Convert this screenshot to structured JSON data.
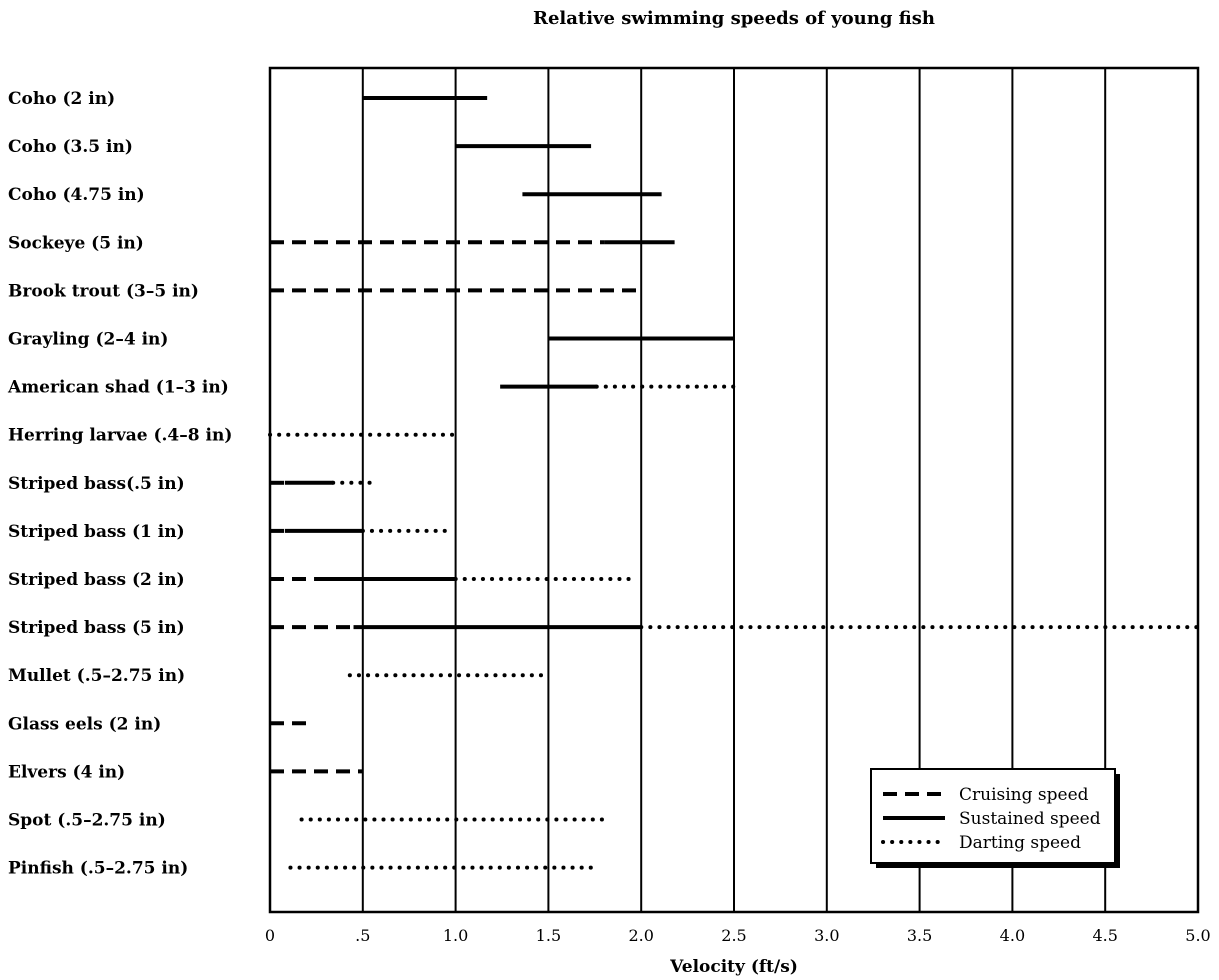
{
  "chart_data": {
    "type": "range-bar",
    "title": "Relative swimming speeds of young fish",
    "xlabel": "Velocity (ft/s)",
    "xlim": [
      0,
      5.0
    ],
    "x_ticks": [
      0,
      0.5,
      1.0,
      1.5,
      2.0,
      2.5,
      3.0,
      3.5,
      4.0,
      4.5,
      5.0
    ],
    "x_tick_labels": [
      "0",
      ".5",
      "1.0",
      "1.5",
      "2.0",
      "2.5",
      "3.0",
      "3.5",
      "4.0",
      "4.5",
      "5.0"
    ],
    "grid": "vertical",
    "legend": {
      "placement": "bottom-right",
      "entries": [
        {
          "key": "cruising",
          "label": "Cruising speed",
          "style": "dashed"
        },
        {
          "key": "sustained",
          "label": "Sustained speed",
          "style": "solid"
        },
        {
          "key": "darting",
          "label": "Darting speed",
          "style": "dotted"
        }
      ]
    },
    "categories": [
      {
        "label": "Coho (2 in)",
        "segments": [
          {
            "type": "sustained",
            "from": 0.5,
            "to": 1.17
          }
        ]
      },
      {
        "label": "Coho (3.5 in)",
        "segments": [
          {
            "type": "sustained",
            "from": 1.0,
            "to": 1.73
          }
        ]
      },
      {
        "label": "Coho (4.75 in)",
        "segments": [
          {
            "type": "sustained",
            "from": 1.36,
            "to": 2.11
          }
        ]
      },
      {
        "label": "Sockeye (5 in)",
        "segments": [
          {
            "type": "cruising",
            "from": 0,
            "to": 1.8
          },
          {
            "type": "sustained",
            "from": 1.8,
            "to": 2.18
          }
        ]
      },
      {
        "label": "Brook trout (3–5 in)",
        "segments": [
          {
            "type": "cruising",
            "from": 0,
            "to": 2.0
          }
        ]
      },
      {
        "label": "Grayling (2–4 in)",
        "segments": [
          {
            "type": "sustained",
            "from": 1.5,
            "to": 2.5
          }
        ]
      },
      {
        "label": "American shad (1–3 in)",
        "segments": [
          {
            "type": "sustained",
            "from": 1.24,
            "to": 1.76
          },
          {
            "type": "darting",
            "from": 1.76,
            "to": 2.5
          }
        ]
      },
      {
        "label": "Herring larvae (.4–8 in)",
        "segments": [
          {
            "type": "darting",
            "from": 0,
            "to": 1.0
          }
        ]
      },
      {
        "label": "Striped bass(.5 in)",
        "segments": [
          {
            "type": "cruising",
            "from": 0,
            "to": 0.08
          },
          {
            "type": "sustained",
            "from": 0.08,
            "to": 0.34
          },
          {
            "type": "darting",
            "from": 0.34,
            "to": 0.58
          }
        ]
      },
      {
        "label": "Striped bass (1 in)",
        "segments": [
          {
            "type": "cruising",
            "from": 0,
            "to": 0.08
          },
          {
            "type": "sustained",
            "from": 0.08,
            "to": 0.5
          },
          {
            "type": "darting",
            "from": 0.5,
            "to": 0.95
          }
        ]
      },
      {
        "label": "Striped bass (2 in)",
        "segments": [
          {
            "type": "cruising",
            "from": 0,
            "to": 0.24
          },
          {
            "type": "sustained",
            "from": 0.24,
            "to": 1.0
          },
          {
            "type": "darting",
            "from": 1.0,
            "to": 1.98
          }
        ]
      },
      {
        "label": "Striped bass (5 in)",
        "segments": [
          {
            "type": "cruising",
            "from": 0,
            "to": 0.45
          },
          {
            "type": "sustained",
            "from": 0.45,
            "to": 2.0
          },
          {
            "type": "darting",
            "from": 2.0,
            "to": 5.0
          }
        ]
      },
      {
        "label": "Mullet (.5–2.75 in)",
        "segments": [
          {
            "type": "darting",
            "from": 0.43,
            "to": 1.47
          }
        ]
      },
      {
        "label": "Glass eels (2 in)",
        "segments": [
          {
            "type": "cruising",
            "from": 0,
            "to": 0.22
          }
        ]
      },
      {
        "label": "Elvers (4 in)",
        "segments": [
          {
            "type": "cruising",
            "from": 0,
            "to": 0.5
          }
        ]
      },
      {
        "label": "Spot (.5–2.75 in)",
        "segments": [
          {
            "type": "darting",
            "from": 0.17,
            "to": 1.79
          }
        ]
      },
      {
        "label": "Pinfish (.5–2.75 in)",
        "segments": [
          {
            "type": "darting",
            "from": 0.11,
            "to": 1.73
          }
        ]
      }
    ]
  }
}
